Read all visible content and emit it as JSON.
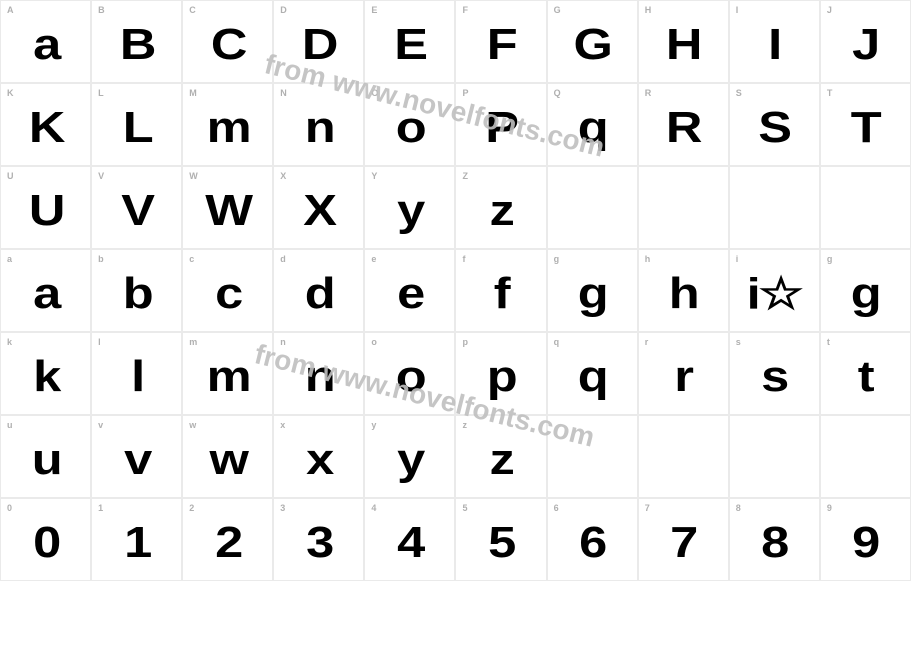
{
  "watermark_text": "from www.novelfonts.com",
  "colors": {
    "border": "#eaeaea",
    "label": "#b0b0b0",
    "glyph": "#000000",
    "background": "#ffffff",
    "watermark": "#bfbfbf"
  },
  "typography": {
    "label_fontsize": 9,
    "glyph_fontsize": 44,
    "glyph_fontweight": 900,
    "watermark_fontsize": 28
  },
  "rows": [
    [
      {
        "label": "A",
        "glyph": "a"
      },
      {
        "label": "B",
        "glyph": "B"
      },
      {
        "label": "C",
        "glyph": "C"
      },
      {
        "label": "D",
        "glyph": "D"
      },
      {
        "label": "E",
        "glyph": "E"
      },
      {
        "label": "F",
        "glyph": "F"
      },
      {
        "label": "G",
        "glyph": "G"
      },
      {
        "label": "H",
        "glyph": "H"
      },
      {
        "label": "I",
        "glyph": "I"
      },
      {
        "label": "J",
        "glyph": "J"
      }
    ],
    [
      {
        "label": "K",
        "glyph": "K"
      },
      {
        "label": "L",
        "glyph": "L"
      },
      {
        "label": "M",
        "glyph": "m"
      },
      {
        "label": "N",
        "glyph": "n"
      },
      {
        "label": "O",
        "glyph": "o"
      },
      {
        "label": "P",
        "glyph": "P"
      },
      {
        "label": "Q",
        "glyph": "q"
      },
      {
        "label": "R",
        "glyph": "R"
      },
      {
        "label": "S",
        "glyph": "S"
      },
      {
        "label": "T",
        "glyph": "T"
      }
    ],
    [
      {
        "label": "U",
        "glyph": "U"
      },
      {
        "label": "V",
        "glyph": "V"
      },
      {
        "label": "W",
        "glyph": "W"
      },
      {
        "label": "X",
        "glyph": "X"
      },
      {
        "label": "Y",
        "glyph": "y"
      },
      {
        "label": "Z",
        "glyph": "z"
      },
      {
        "empty": true
      },
      {
        "empty": true
      },
      {
        "empty": true
      },
      {
        "empty": true
      }
    ],
    [
      {
        "label": "a",
        "glyph": "a"
      },
      {
        "label": "b",
        "glyph": "b"
      },
      {
        "label": "c",
        "glyph": "c"
      },
      {
        "label": "d",
        "glyph": "d"
      },
      {
        "label": "e",
        "glyph": "e"
      },
      {
        "label": "f",
        "glyph": "f"
      },
      {
        "label": "g",
        "glyph": "g"
      },
      {
        "label": "h",
        "glyph": "h"
      },
      {
        "label": "i",
        "glyph": "i☆"
      },
      {
        "label": "g",
        "glyph": "g"
      }
    ],
    [
      {
        "label": "k",
        "glyph": "k"
      },
      {
        "label": "l",
        "glyph": "l"
      },
      {
        "label": "m",
        "glyph": "m"
      },
      {
        "label": "n",
        "glyph": "n"
      },
      {
        "label": "o",
        "glyph": "o"
      },
      {
        "label": "p",
        "glyph": "p"
      },
      {
        "label": "q",
        "glyph": "q"
      },
      {
        "label": "r",
        "glyph": "r"
      },
      {
        "label": "s",
        "glyph": "s"
      },
      {
        "label": "t",
        "glyph": "t"
      }
    ],
    [
      {
        "label": "u",
        "glyph": "u"
      },
      {
        "label": "v",
        "glyph": "v"
      },
      {
        "label": "w",
        "glyph": "w"
      },
      {
        "label": "x",
        "glyph": "x"
      },
      {
        "label": "y",
        "glyph": "y"
      },
      {
        "label": "z",
        "glyph": "z"
      },
      {
        "empty": true
      },
      {
        "empty": true
      },
      {
        "empty": true
      },
      {
        "empty": true
      }
    ],
    [
      {
        "label": "0",
        "glyph": "0"
      },
      {
        "label": "1",
        "glyph": "1"
      },
      {
        "label": "2",
        "glyph": "2"
      },
      {
        "label": "3",
        "glyph": "3"
      },
      {
        "label": "4",
        "glyph": "4"
      },
      {
        "label": "5",
        "glyph": "5"
      },
      {
        "label": "6",
        "glyph": "6"
      },
      {
        "label": "7",
        "glyph": "7"
      },
      {
        "label": "8",
        "glyph": "8"
      },
      {
        "label": "9",
        "glyph": "9"
      }
    ]
  ]
}
